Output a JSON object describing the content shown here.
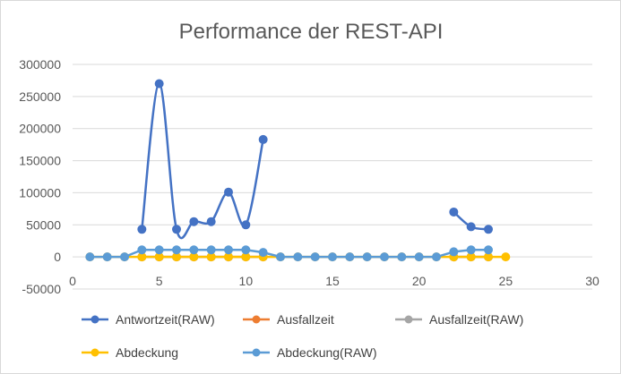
{
  "chart_data": {
    "type": "line",
    "title": "Performance der REST-API",
    "xlabel": "",
    "ylabel": "",
    "xlim": [
      0,
      30
    ],
    "ylim": [
      -50000,
      300000
    ],
    "x_ticks": [
      0,
      5,
      10,
      15,
      20,
      25,
      30
    ],
    "y_ticks": [
      -50000,
      0,
      50000,
      100000,
      150000,
      200000,
      250000,
      300000
    ],
    "grid": "horizontal",
    "legend_position": "bottom",
    "series": [
      {
        "name": "Antwortzeit(RAW)",
        "color": "#4472C4",
        "smooth": true,
        "points": [
          [
            4,
            43000
          ],
          [
            5,
            270000
          ],
          [
            6,
            43000
          ],
          [
            7,
            55000
          ],
          [
            8,
            55000
          ],
          [
            9,
            101000
          ],
          [
            10,
            50000
          ],
          [
            11,
            183000
          ],
          [
            22,
            70000
          ],
          [
            23,
            47000
          ],
          [
            24,
            43000
          ]
        ]
      },
      {
        "name": "Ausfallzeit",
        "color": "#ED7D31",
        "smooth": false,
        "points": [
          [
            4,
            0
          ],
          [
            5,
            0
          ],
          [
            6,
            0
          ],
          [
            7,
            0
          ],
          [
            8,
            0
          ],
          [
            9,
            0
          ],
          [
            10,
            0
          ],
          [
            11,
            0
          ],
          [
            22,
            0
          ],
          [
            23,
            0
          ],
          [
            24,
            0
          ]
        ]
      },
      {
        "name": "Ausfallzeit(RAW)",
        "color": "#A5A5A5",
        "smooth": false,
        "points": [
          [
            4,
            0
          ],
          [
            5,
            0
          ],
          [
            6,
            0
          ],
          [
            7,
            0
          ],
          [
            8,
            0
          ],
          [
            9,
            0
          ],
          [
            10,
            0
          ],
          [
            11,
            0
          ],
          [
            22,
            0
          ],
          [
            23,
            0
          ],
          [
            24,
            0
          ]
        ]
      },
      {
        "name": "Abdeckung",
        "color": "#FFC000",
        "smooth": false,
        "points": [
          [
            1,
            0
          ],
          [
            2,
            0
          ],
          [
            3,
            0
          ],
          [
            4,
            0
          ],
          [
            5,
            0
          ],
          [
            6,
            0
          ],
          [
            7,
            0
          ],
          [
            8,
            0
          ],
          [
            9,
            0
          ],
          [
            10,
            0
          ],
          [
            11,
            0
          ],
          [
            12,
            0
          ],
          [
            13,
            0
          ],
          [
            14,
            0
          ],
          [
            15,
            0
          ],
          [
            16,
            0
          ],
          [
            17,
            0
          ],
          [
            18,
            0
          ],
          [
            19,
            0
          ],
          [
            20,
            0
          ],
          [
            21,
            0
          ],
          [
            22,
            0
          ],
          [
            23,
            0
          ],
          [
            24,
            0
          ],
          [
            25,
            0
          ]
        ]
      },
      {
        "name": "Abdeckung(RAW)",
        "color": "#5B9BD5",
        "smooth": false,
        "points": [
          [
            1,
            0
          ],
          [
            2,
            0
          ],
          [
            3,
            0
          ],
          [
            4,
            11000
          ],
          [
            5,
            11000
          ],
          [
            6,
            11000
          ],
          [
            7,
            11000
          ],
          [
            8,
            11000
          ],
          [
            9,
            11000
          ],
          [
            10,
            11000
          ],
          [
            11,
            7000
          ],
          [
            12,
            0
          ],
          [
            13,
            0
          ],
          [
            14,
            0
          ],
          [
            15,
            0
          ],
          [
            16,
            0
          ],
          [
            17,
            0
          ],
          [
            18,
            0
          ],
          [
            19,
            0
          ],
          [
            20,
            0
          ],
          [
            21,
            0
          ],
          [
            22,
            8000
          ],
          [
            23,
            11000
          ],
          [
            24,
            11000
          ]
        ]
      }
    ]
  }
}
